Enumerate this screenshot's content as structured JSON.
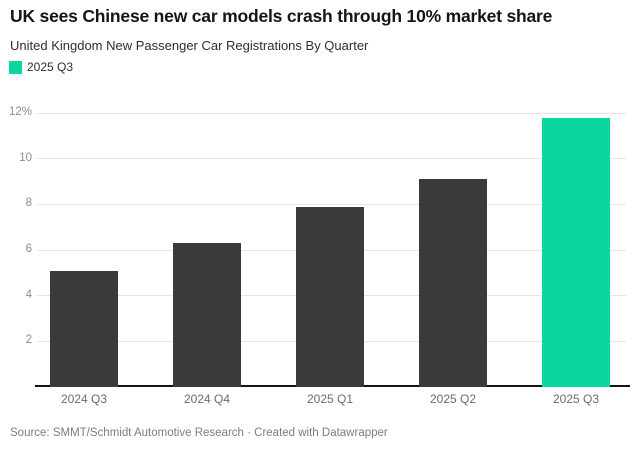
{
  "header": {
    "title": "UK sees Chinese new car models crash through 10% market share",
    "subtitle": "United Kingdom New Passenger Car Registrations By Quarter"
  },
  "legend": {
    "label": "2025 Q3",
    "swatch_color": "#0bd6a2"
  },
  "chart_data": {
    "type": "bar",
    "title": "UK sees Chinese new car models crash through 10% market share",
    "subtitle": "United Kingdom New Passenger Car Registrations By Quarter",
    "categories": [
      "2024 Q3",
      "2024 Q4",
      "2025 Q1",
      "2025 Q2",
      "2025 Q3"
    ],
    "values": [
      5.1,
      6.3,
      7.9,
      9.1,
      11.8
    ],
    "unit": "%",
    "xlabel": "",
    "ylabel": "",
    "ylim": [
      0,
      12
    ],
    "yticks": [
      2,
      4,
      6,
      8,
      10,
      12
    ],
    "ytick_labels": [
      "2",
      "4",
      "6",
      "8",
      "10",
      "12%"
    ],
    "grid": true,
    "legend_position": "top-left",
    "highlight_index": 4,
    "bar_color_default": "#3a393b",
    "bar_color_highlight": "#0bd6a2",
    "gridline_color": "#e4e4e4"
  },
  "footer": {
    "text": "Source: SMMT/Schmidt Automotive Research · Created with Datawrapper"
  },
  "colors": {
    "accent_green": "#0bd6a2",
    "bar_dark": "#3a393b",
    "grid": "#e4e4e4",
    "axis_line": "#141414",
    "title_text": "#151515",
    "muted_text": "#7d7d7d"
  }
}
